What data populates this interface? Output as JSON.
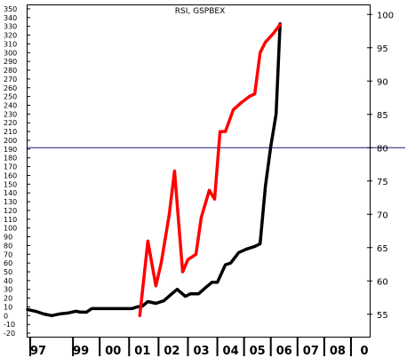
{
  "chart_data": {
    "type": "line",
    "title": "RSI, GSPBEX",
    "xlabel": "",
    "ylabel": "",
    "x_tick_labels": [
      "97",
      "99",
      "00",
      "01",
      "02",
      "03",
      "04",
      "05",
      "06",
      "07",
      "08",
      "0"
    ],
    "x_range": [
      1996.5,
      2009.3
    ],
    "left_axis": {
      "range": [
        -25,
        355
      ],
      "ticks": [
        -20,
        -10,
        0,
        10,
        20,
        30,
        40,
        50,
        60,
        70,
        80,
        90,
        100,
        110,
        120,
        130,
        140,
        150,
        160,
        170,
        180,
        190,
        200,
        210,
        220,
        230,
        240,
        250,
        260,
        270,
        280,
        290,
        300,
        310,
        320,
        330,
        340,
        350
      ]
    },
    "right_axis": {
      "range": [
        51.5,
        101.5
      ],
      "ticks": [
        55,
        60,
        65,
        70,
        75,
        80,
        85,
        90,
        95,
        100
      ]
    },
    "reference_line": {
      "axis": "right",
      "value": 80,
      "color": "#1a1a7a"
    },
    "grid": false,
    "series": [
      {
        "axis": "left",
        "color": "#000000",
        "points": [
          [
            1996.5,
            7
          ],
          [
            1996.8,
            5
          ],
          [
            1997.1,
            2
          ],
          [
            1997.4,
            0
          ],
          [
            1997.7,
            2
          ],
          [
            1998.0,
            3
          ],
          [
            1998.3,
            5
          ],
          [
            1998.5,
            4
          ],
          [
            1998.7,
            4
          ],
          [
            1998.9,
            8
          ],
          [
            1999.2,
            8
          ],
          [
            1999.5,
            8
          ],
          [
            1999.8,
            8
          ],
          [
            2000.1,
            8
          ],
          [
            2000.4,
            8
          ],
          [
            2000.6,
            10
          ],
          [
            2000.8,
            11
          ],
          [
            2001.0,
            16
          ],
          [
            2001.3,
            14
          ],
          [
            2001.6,
            17
          ],
          [
            2001.9,
            25
          ],
          [
            2002.1,
            30
          ],
          [
            2002.4,
            22
          ],
          [
            2002.6,
            25
          ],
          [
            2002.9,
            25
          ],
          [
            2003.2,
            33
          ],
          [
            2003.4,
            38
          ],
          [
            2003.6,
            38
          ],
          [
            2003.9,
            58
          ],
          [
            2004.1,
            60
          ],
          [
            2004.4,
            72
          ],
          [
            2004.7,
            76
          ],
          [
            2005.0,
            79
          ],
          [
            2005.2,
            82
          ],
          [
            2005.4,
            148
          ],
          [
            2005.6,
            193
          ],
          [
            2005.8,
            230
          ],
          [
            2005.95,
            333
          ]
        ]
      },
      {
        "axis": "left",
        "color": "#ff0000",
        "points": [
          [
            2000.7,
            0
          ],
          [
            2001.0,
            85
          ],
          [
            2001.3,
            34
          ],
          [
            2001.5,
            60
          ],
          [
            2001.8,
            115
          ],
          [
            2002.0,
            165
          ],
          [
            2002.3,
            50
          ],
          [
            2002.5,
            64
          ],
          [
            2002.8,
            70
          ],
          [
            2003.0,
            112
          ],
          [
            2003.3,
            143
          ],
          [
            2003.5,
            133
          ],
          [
            2003.7,
            210
          ],
          [
            2003.9,
            210
          ],
          [
            2004.2,
            235
          ],
          [
            2004.5,
            243
          ],
          [
            2004.8,
            250
          ],
          [
            2005.0,
            253
          ],
          [
            2005.2,
            300
          ],
          [
            2005.4,
            312
          ],
          [
            2005.7,
            322
          ],
          [
            2005.95,
            332
          ]
        ]
      }
    ]
  }
}
